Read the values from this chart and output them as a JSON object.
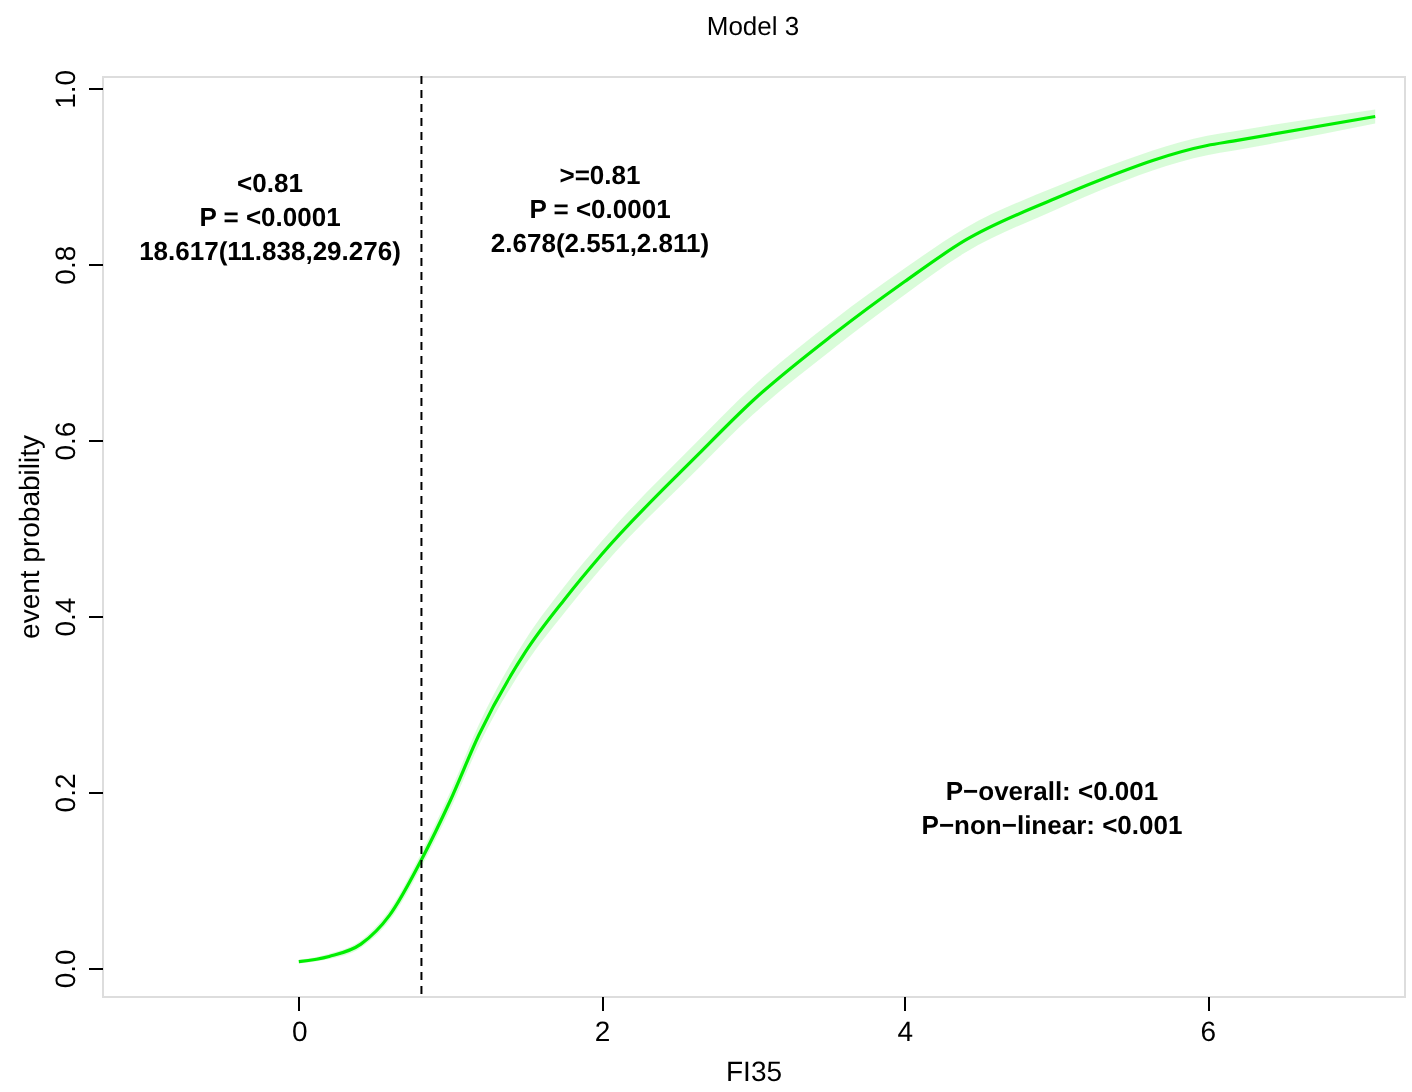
{
  "chart_data": {
    "type": "line",
    "title": "Model 3",
    "xlabel": "FI35",
    "ylabel": "event probability",
    "x": [
      0,
      0.2,
      0.41,
      0.6,
      0.81,
      1.0,
      1.19,
      1.5,
      1.76,
      2.0,
      2.64,
      3.0,
      3.53,
      4.0,
      4.4,
      5.0,
      5.28,
      6.0,
      6.17,
      7.11
    ],
    "series": [
      {
        "color": "#00ee00",
        "values": [
          0.007,
          0.013,
          0.027,
          0.06,
          0.123,
          0.19,
          0.265,
          0.36,
          0.42,
          0.47,
          0.584,
          0.645,
          0.72,
          0.78,
          0.827,
          0.875,
          0.895,
          0.935,
          0.94,
          0.968
        ],
        "lower": [
          0.005,
          0.01,
          0.023,
          0.054,
          0.115,
          0.18,
          0.253,
          0.346,
          0.405,
          0.455,
          0.568,
          0.629,
          0.704,
          0.765,
          0.813,
          0.862,
          0.883,
          0.924,
          0.929,
          0.96
        ],
        "upper": [
          0.009,
          0.016,
          0.031,
          0.066,
          0.131,
          0.2,
          0.277,
          0.374,
          0.435,
          0.485,
          0.6,
          0.661,
          0.736,
          0.795,
          0.841,
          0.888,
          0.907,
          0.946,
          0.951,
          0.976
        ]
      }
    ],
    "xlim": [
      -1.3,
      7.3
    ],
    "ylim": [
      -0.032,
      1.014
    ],
    "xticks": [
      0,
      2,
      4,
      6
    ],
    "yticks": [
      {
        "value": 0,
        "label": "0.0"
      },
      {
        "value": 0.2,
        "label": "0.2"
      },
      {
        "value": 0.4,
        "label": "0.4"
      },
      {
        "value": 0.6,
        "label": "0.6"
      },
      {
        "value": 0.8,
        "label": "0.8"
      },
      {
        "value": 1.0,
        "label": "1.0"
      }
    ],
    "ref_lines": [
      {
        "axis": "x",
        "value": 0.81,
        "label": null,
        "color": "#000000",
        "line_style": "dashed"
      }
    ],
    "annotations": [
      "<0.81\nP = <0.0001\n18.617(11.838,29.276)",
      ">=0.81\nP = <0.0001\n2.678(2.551,2.811)",
      "P−overall: <0.001\nP−non−linear: <0.001"
    ],
    "grid": false,
    "marker": "none",
    "line_style": "solid"
  }
}
